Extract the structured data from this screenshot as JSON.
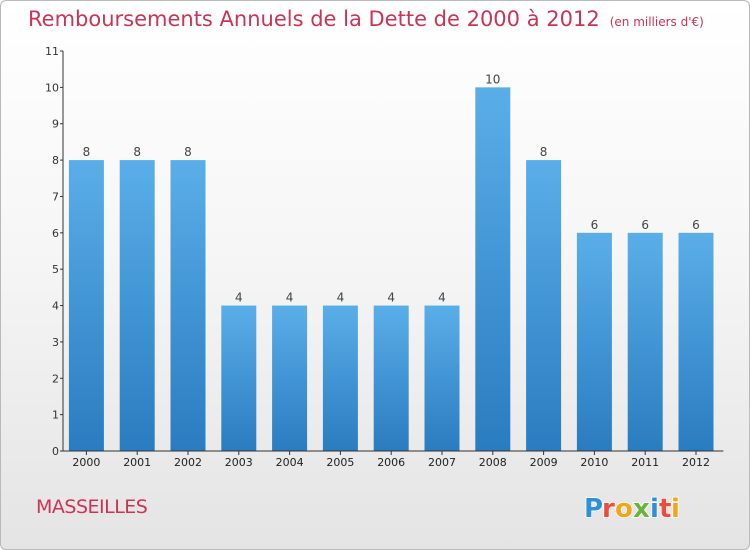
{
  "title": "Remboursements Annuels de la Dette de 2000 à 2012",
  "unit": "(en milliers d'€)",
  "commune": "MASSEILLES",
  "logo_text": "Proxiti",
  "colors": {
    "title": "#cc3355",
    "bar_top": "#5aaee8",
    "bar_bottom": "#2a7cc0",
    "axis": "#333333"
  },
  "chart_data": {
    "type": "bar",
    "title": "Remboursements Annuels de la Dette de 2000 à 2012",
    "unit": "(en milliers d'€)",
    "categories": [
      "2000",
      "2001",
      "2002",
      "2003",
      "2004",
      "2005",
      "2006",
      "2007",
      "2008",
      "2009",
      "2010",
      "2011",
      "2012"
    ],
    "values": [
      8,
      8,
      8,
      4,
      4,
      4,
      4,
      4,
      10,
      8,
      6,
      6,
      6
    ],
    "y_ticks": [
      0,
      1,
      2,
      3,
      4,
      5,
      6,
      7,
      8,
      9,
      10,
      11
    ],
    "ylim": [
      0,
      11
    ],
    "grid": false,
    "data_labels": true,
    "legend": "none"
  }
}
